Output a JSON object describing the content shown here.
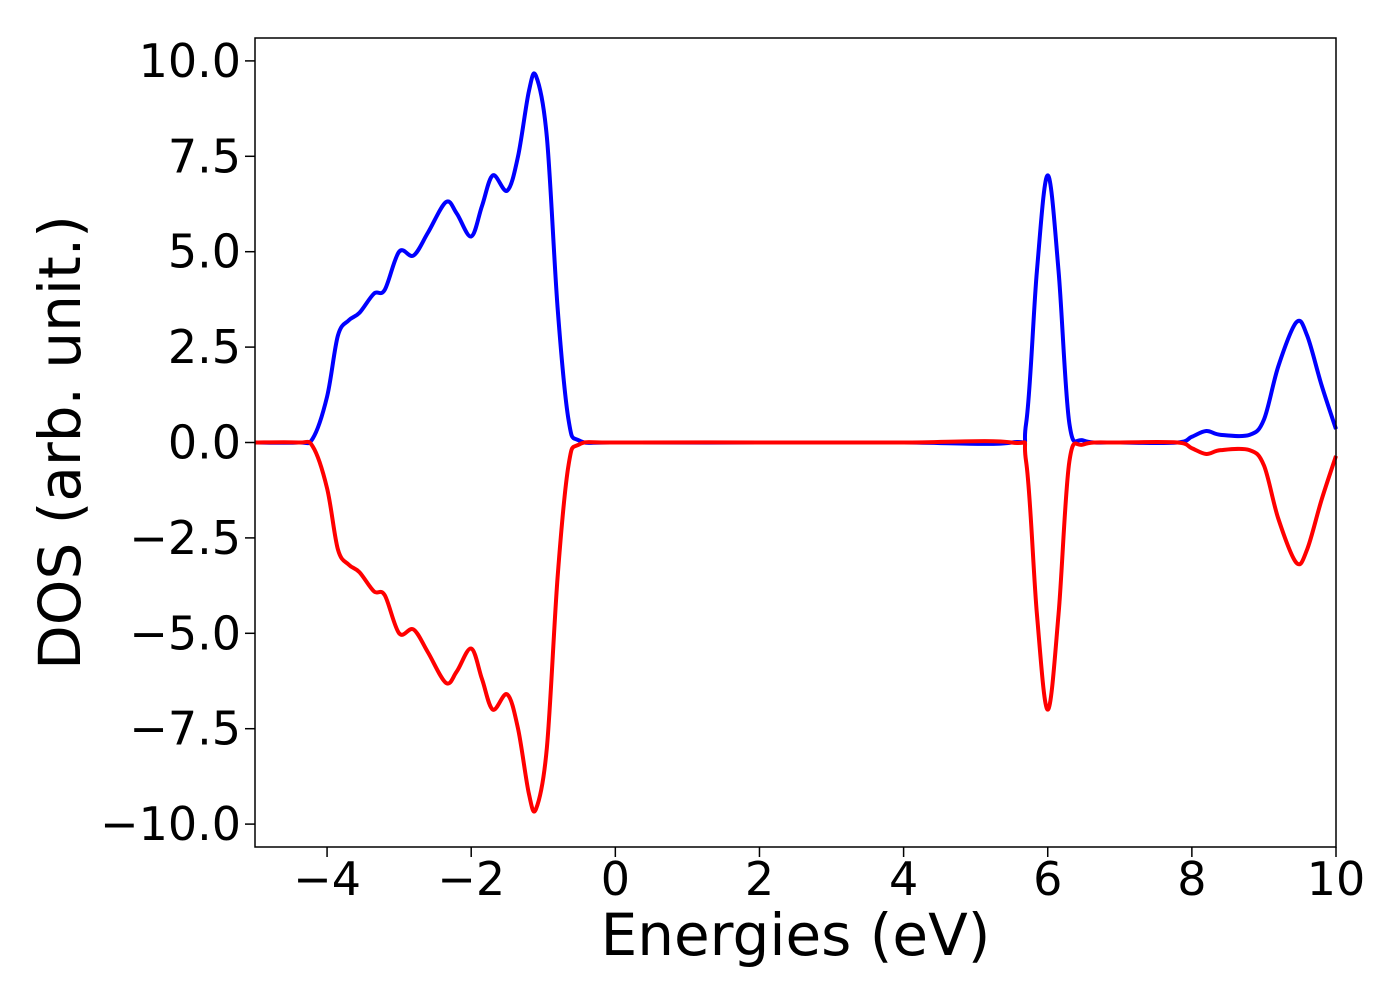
{
  "chart_data": {
    "type": "line",
    "xlabel": "Energies (eV)",
    "ylabel": "DOS (arb. unit.)",
    "xlim": [
      -5,
      10
    ],
    "ylim": [
      -10.6,
      10.6
    ],
    "grid": false,
    "legend": "none",
    "x_ticks": [
      -4,
      -2,
      0,
      2,
      4,
      6,
      8,
      10
    ],
    "x_tick_labels": [
      "−4",
      "−2",
      "0",
      "2",
      "4",
      "6",
      "8",
      "10"
    ],
    "y_ticks": [
      10,
      7.5,
      5,
      2.5,
      0,
      -2.5,
      -5,
      -7.5,
      -10
    ],
    "y_tick_labels": [
      "10.0",
      "7.5",
      "5.0",
      "2.5",
      "0.0",
      "−2.5",
      "−5.0",
      "−7.5",
      "−10.0"
    ],
    "series": [
      {
        "color": "#0000ff",
        "points": [
          [
            -5.0,
            0
          ],
          [
            -4.4,
            0
          ],
          [
            -4.2,
            0.1
          ],
          [
            -4.0,
            1.2
          ],
          [
            -3.85,
            2.8
          ],
          [
            -3.7,
            3.2
          ],
          [
            -3.55,
            3.4
          ],
          [
            -3.35,
            3.9
          ],
          [
            -3.2,
            4.0
          ],
          [
            -3.0,
            5.0
          ],
          [
            -2.8,
            4.9
          ],
          [
            -2.6,
            5.5
          ],
          [
            -2.35,
            6.3
          ],
          [
            -2.2,
            6.0
          ],
          [
            -2.0,
            5.4
          ],
          [
            -1.85,
            6.2
          ],
          [
            -1.7,
            7.0
          ],
          [
            -1.5,
            6.6
          ],
          [
            -1.35,
            7.5
          ],
          [
            -1.2,
            9.2
          ],
          [
            -1.1,
            9.6
          ],
          [
            -0.95,
            8.0
          ],
          [
            -0.8,
            3.5
          ],
          [
            -0.65,
            0.6
          ],
          [
            -0.5,
            0.05
          ],
          [
            0.0,
            0
          ],
          [
            2.0,
            0
          ],
          [
            4.0,
            0
          ],
          [
            5.5,
            0
          ],
          [
            5.7,
            0.5
          ],
          [
            5.85,
            4.5
          ],
          [
            6.0,
            7.0
          ],
          [
            6.15,
            4.5
          ],
          [
            6.3,
            0.5
          ],
          [
            6.5,
            0.05
          ],
          [
            7.0,
            0
          ],
          [
            7.8,
            0
          ],
          [
            8.0,
            0.15
          ],
          [
            8.2,
            0.3
          ],
          [
            8.4,
            0.2
          ],
          [
            8.8,
            0.2
          ],
          [
            9.0,
            0.6
          ],
          [
            9.2,
            2.0
          ],
          [
            9.45,
            3.15
          ],
          [
            9.6,
            2.8
          ],
          [
            9.8,
            1.5
          ],
          [
            10.0,
            0.35
          ]
        ]
      },
      {
        "color": "#ff0000",
        "points": [
          [
            -5.0,
            0
          ],
          [
            -4.4,
            0
          ],
          [
            -4.2,
            -0.1
          ],
          [
            -4.0,
            -1.2
          ],
          [
            -3.85,
            -2.8
          ],
          [
            -3.7,
            -3.2
          ],
          [
            -3.55,
            -3.4
          ],
          [
            -3.35,
            -3.9
          ],
          [
            -3.2,
            -4.0
          ],
          [
            -3.0,
            -5.0
          ],
          [
            -2.8,
            -4.9
          ],
          [
            -2.6,
            -5.5
          ],
          [
            -2.35,
            -6.3
          ],
          [
            -2.2,
            -6.0
          ],
          [
            -2.0,
            -5.4
          ],
          [
            -1.85,
            -6.2
          ],
          [
            -1.7,
            -7.0
          ],
          [
            -1.5,
            -6.6
          ],
          [
            -1.35,
            -7.5
          ],
          [
            -1.2,
            -9.2
          ],
          [
            -1.1,
            -9.6
          ],
          [
            -0.95,
            -8.0
          ],
          [
            -0.8,
            -3.5
          ],
          [
            -0.65,
            -0.6
          ],
          [
            -0.5,
            -0.05
          ],
          [
            0.0,
            0
          ],
          [
            2.0,
            0
          ],
          [
            4.0,
            0
          ],
          [
            5.5,
            0
          ],
          [
            5.7,
            -0.5
          ],
          [
            5.85,
            -4.5
          ],
          [
            6.0,
            -7.0
          ],
          [
            6.15,
            -4.5
          ],
          [
            6.3,
            -0.5
          ],
          [
            6.5,
            -0.05
          ],
          [
            7.0,
            0
          ],
          [
            7.8,
            0
          ],
          [
            8.0,
            -0.15
          ],
          [
            8.2,
            -0.3
          ],
          [
            8.4,
            -0.2
          ],
          [
            8.8,
            -0.2
          ],
          [
            9.0,
            -0.6
          ],
          [
            9.2,
            -2.0
          ],
          [
            9.45,
            -3.15
          ],
          [
            9.6,
            -2.8
          ],
          [
            9.8,
            -1.5
          ],
          [
            10.0,
            -0.35
          ]
        ]
      }
    ]
  }
}
